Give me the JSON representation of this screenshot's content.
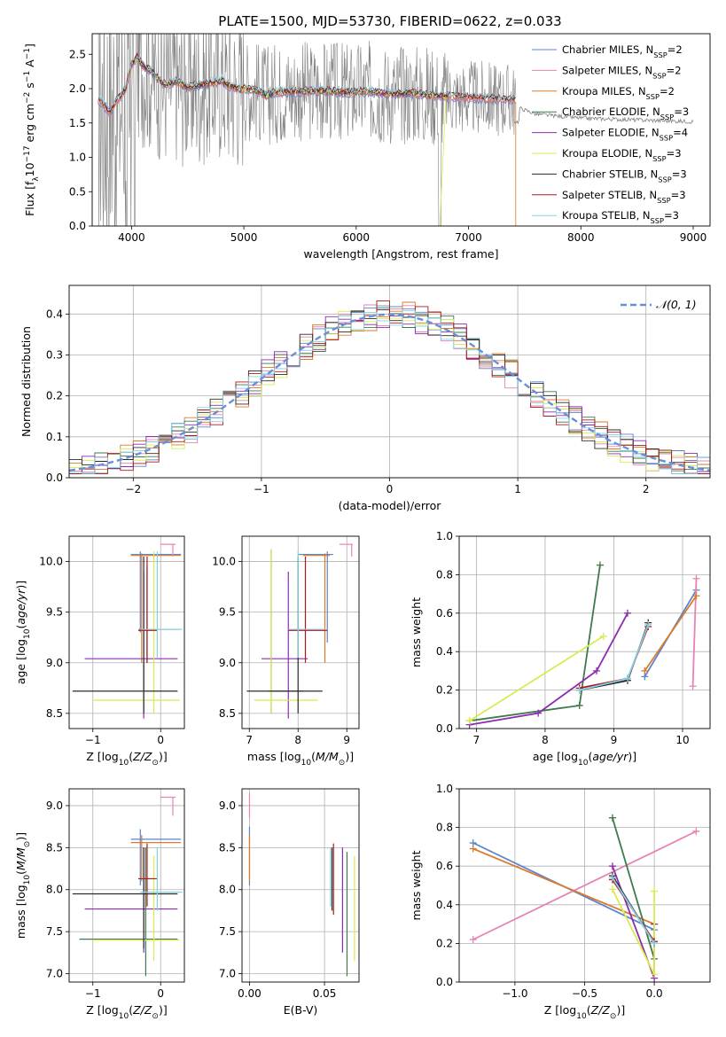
{
  "figure_title": "PLATE=1500, MJD=53730, FIBERID=0622, z=0.033",
  "colors": {
    "Chabrier MILES": "#5b84d0",
    "Salpeter MILES": "#e882b5",
    "Kroupa MILES": "#d97a2d",
    "Chabrier ELODIE": "#3f7a4a",
    "Salpeter ELODIE": "#8e2bb0",
    "Kroupa ELODIE": "#d8ec50",
    "Chabrier STELIB": "#2b2b2b",
    "Salpeter STELIB": "#b01818",
    "Kroupa STELIB": "#82d2e6",
    "data": "#808080",
    "normal": "#6a8fd6",
    "grid": "#b0b0b0"
  },
  "chart_data": [
    {
      "id": "spectrum",
      "type": "line",
      "title": "PLATE=1500, MJD=53730, FIBERID=0622, z=0.033",
      "xlabel": "wavelength [Angstrom, rest frame]",
      "ylabel": "Flux [f_λ 10^-17 erg cm^-2 s^-1 A^-1]",
      "xlim": [
        3650,
        9150
      ],
      "ylim": [
        0,
        2.8
      ],
      "xticks": [
        4000,
        5000,
        6000,
        7000,
        8000,
        9000
      ],
      "yticks": [
        0.0,
        0.5,
        1.0,
        1.5,
        2.0,
        2.5
      ],
      "ytick_labels": [
        "0.0",
        "0.5",
        "1.0",
        "1.5",
        "2.0",
        "2.5"
      ],
      "grid": false,
      "legend_position": "right",
      "legend": [
        {
          "model": "Chabrier MILES",
          "n_ssp": "2"
        },
        {
          "model": "Salpeter MILES",
          "n_ssp": "2"
        },
        {
          "model": "Kroupa MILES",
          "n_ssp": "2"
        },
        {
          "model": "Chabrier ELODIE",
          "n_ssp": "3"
        },
        {
          "model": "Salpeter ELODIE",
          "n_ssp": "4"
        },
        {
          "model": "Kroupa ELODIE",
          "n_ssp": "3"
        },
        {
          "model": "Chabrier STELIB",
          "n_ssp": "3"
        },
        {
          "model": "Salpeter STELIB",
          "n_ssp": "3"
        },
        {
          "model": "Kroupa STELIB",
          "n_ssp": "3"
        }
      ],
      "model_continuum": [
        [
          3700,
          1.85
        ],
        [
          3760,
          1.75
        ],
        [
          3800,
          1.65
        ],
        [
          3850,
          1.78
        ],
        [
          3900,
          1.88
        ],
        [
          3950,
          2.0
        ],
        [
          4000,
          2.35
        ],
        [
          4050,
          2.45
        ],
        [
          4100,
          2.33
        ],
        [
          4150,
          2.28
        ],
        [
          4200,
          2.2
        ],
        [
          4300,
          2.05
        ],
        [
          4400,
          2.1
        ],
        [
          4500,
          2.02
        ],
        [
          4600,
          2.05
        ],
        [
          4700,
          2.08
        ],
        [
          4800,
          2.12
        ],
        [
          4860,
          2.05
        ],
        [
          4950,
          2.0
        ],
        [
          5100,
          1.98
        ],
        [
          5200,
          1.9
        ],
        [
          5300,
          1.95
        ],
        [
          5500,
          1.96
        ],
        [
          5700,
          1.97
        ],
        [
          5900,
          1.94
        ],
        [
          6100,
          1.96
        ],
        [
          6300,
          1.92
        ],
        [
          6500,
          1.93
        ],
        [
          6700,
          1.9
        ],
        [
          6900,
          1.88
        ],
        [
          7100,
          1.86
        ],
        [
          7300,
          1.85
        ],
        [
          7400,
          1.84
        ]
      ],
      "ir_continuum": [
        [
          7450,
          1.72
        ],
        [
          7600,
          1.63
        ],
        [
          7800,
          1.6
        ],
        [
          8000,
          1.57
        ],
        [
          8200,
          1.56
        ],
        [
          8400,
          1.55
        ],
        [
          8600,
          1.54
        ],
        [
          8800,
          1.53
        ],
        [
          9000,
          1.52
        ]
      ]
    },
    {
      "id": "residuals",
      "type": "histogram",
      "xlabel": "(data-model)/error",
      "ylabel": "Normed distribution",
      "xlim": [
        -2.5,
        2.5
      ],
      "ylim": [
        0,
        0.47
      ],
      "xticks": [
        -2,
        -1,
        0,
        1,
        2
      ],
      "xtick_labels": [
        "−2",
        "−1",
        "0",
        "1",
        "2"
      ],
      "yticks": [
        0.0,
        0.1,
        0.2,
        0.3,
        0.4
      ],
      "ytick_labels": [
        "0.0",
        "0.1",
        "0.2",
        "0.3",
        "0.4"
      ],
      "bin_width": 0.1,
      "grid": true,
      "legend_position": "top-right",
      "legend_label": "𝒩(0, 1)",
      "reference_curve": "normal(0,1)"
    },
    {
      "id": "age-vs-Z",
      "type": "scatter",
      "xlabel": "Z [log10(Z/Z⊙)]",
      "ylabel": "age  [log10(age/yr)]",
      "xlim": [
        -1.35,
        0.35
      ],
      "ylim": [
        8.35,
        10.25
      ],
      "xticks": [
        -1,
        0
      ],
      "xtick_labels": [
        "−1",
        "0"
      ],
      "yticks": [
        8.5,
        9.0,
        9.5,
        10.0
      ],
      "ytick_labels": [
        "8.5",
        "9.0",
        "9.5",
        "10.0"
      ],
      "grid": true
    },
    {
      "id": "age-vs-mass",
      "type": "scatter",
      "xlabel": "mass [log10(M/M⊙)]",
      "xlim": [
        6.85,
        9.25
      ],
      "ylim": [
        8.35,
        10.25
      ],
      "xticks": [
        7,
        8,
        9
      ],
      "xtick_labels": [
        "7",
        "8",
        "9"
      ],
      "yticks": [
        8.5,
        9.0,
        9.5,
        10.0
      ],
      "ytick_labels": [
        "8.5",
        "9.0",
        "9.5",
        "10.0"
      ],
      "grid": true
    },
    {
      "id": "mass-weight-vs-age",
      "type": "line",
      "xlabel": "age  [log10(age/yr)]",
      "ylabel": "mass weight",
      "xlim": [
        6.75,
        10.4
      ],
      "ylim": [
        0,
        1
      ],
      "xticks": [
        7,
        8,
        9,
        10
      ],
      "xtick_labels": [
        "7",
        "8",
        "9",
        "10"
      ],
      "yticks": [
        0.0,
        0.2,
        0.4,
        0.6,
        0.8,
        1.0
      ],
      "ytick_labels": [
        "0.0",
        "0.2",
        "0.4",
        "0.6",
        "0.8",
        "1.0"
      ],
      "grid": true,
      "series": [
        {
          "name": "Chabrier MILES",
          "x": [
            9.45,
            10.2
          ],
          "y": [
            0.27,
            0.72
          ]
        },
        {
          "name": "Salpeter MILES",
          "x": [
            10.15,
            10.2
          ],
          "y": [
            0.22,
            0.78
          ]
        },
        {
          "name": "Kroupa MILES",
          "x": [
            9.45,
            10.2
          ],
          "y": [
            0.3,
            0.69
          ]
        },
        {
          "name": "Chabrier ELODIE",
          "x": [
            6.9,
            8.5,
            8.8
          ],
          "y": [
            0.04,
            0.12,
            0.85
          ]
        },
        {
          "name": "Salpeter ELODIE",
          "x": [
            6.9,
            7.9,
            8.75,
            9.2
          ],
          "y": [
            0.02,
            0.08,
            0.3,
            0.6
          ]
        },
        {
          "name": "Kroupa ELODIE",
          "x": [
            6.9,
            8.85
          ],
          "y": [
            0.04,
            0.48
          ]
        },
        {
          "name": "Chabrier STELIB",
          "x": [
            8.5,
            9.2,
            9.5
          ],
          "y": [
            0.2,
            0.25,
            0.55
          ]
        },
        {
          "name": "Salpeter STELIB",
          "x": [
            8.5,
            9.2,
            9.5
          ],
          "y": [
            0.21,
            0.26,
            0.53
          ]
        },
        {
          "name": "Kroupa STELIB",
          "x": [
            8.5,
            9.2,
            9.5
          ],
          "y": [
            0.2,
            0.26,
            0.54
          ]
        }
      ]
    },
    {
      "id": "mass-vs-Z",
      "type": "scatter",
      "xlabel": "Z [log10(Z/Z⊙)]",
      "ylabel": "mass [log10(M/M⊙)]",
      "xlim": [
        -1.35,
        0.35
      ],
      "ylim": [
        6.9,
        9.2
      ],
      "xticks": [
        -1,
        0
      ],
      "xtick_labels": [
        "−1",
        "0"
      ],
      "yticks": [
        7.0,
        7.5,
        8.0,
        8.5,
        9.0
      ],
      "ytick_labels": [
        "7.0",
        "7.5",
        "8.0",
        "8.5",
        "9.0"
      ],
      "grid": true
    },
    {
      "id": "mass-vs-ebv",
      "type": "scatter",
      "xlabel": "E(B-V)",
      "xlim": [
        -0.005,
        0.073
      ],
      "ylim": [
        6.9,
        9.2
      ],
      "xticks": [
        0.0,
        0.05
      ],
      "xtick_labels": [
        "0.00",
        "0.05"
      ],
      "yticks": [
        7.0,
        7.5,
        8.0,
        8.5,
        9.0
      ],
      "ytick_labels": [
        "7.0",
        "7.5",
        "8.0",
        "8.5",
        "9.0"
      ],
      "grid": true
    },
    {
      "id": "mass-weight-vs-Z",
      "type": "line",
      "xlabel": "Z [log10(Z/Z⊙)]",
      "ylabel": "mass weight",
      "xlim": [
        -1.4,
        0.4
      ],
      "ylim": [
        0,
        1
      ],
      "xticks": [
        -1.0,
        -0.5,
        0.0
      ],
      "xtick_labels": [
        "−1.0",
        "−0.5",
        "0.0"
      ],
      "yticks": [
        0.0,
        0.2,
        0.4,
        0.6,
        0.8,
        1.0
      ],
      "ytick_labels": [
        "0.0",
        "0.2",
        "0.4",
        "0.6",
        "0.8",
        "1.0"
      ],
      "grid": true,
      "series": [
        {
          "name": "Chabrier MILES",
          "x": [
            -1.3,
            0.0
          ],
          "y": [
            0.72,
            0.27
          ]
        },
        {
          "name": "Salpeter MILES",
          "x": [
            -1.3,
            0.3
          ],
          "y": [
            0.22,
            0.78
          ]
        },
        {
          "name": "Kroupa MILES",
          "x": [
            -1.3,
            0.0
          ],
          "y": [
            0.69,
            0.3
          ]
        },
        {
          "name": "Chabrier ELODIE",
          "x": [
            -0.3,
            0.0
          ],
          "y": [
            0.85,
            0.12
          ]
        },
        {
          "name": "Salpeter ELODIE",
          "x": [
            -0.3,
            0.0,
            0.0
          ],
          "y": [
            0.6,
            0.02,
            0.3
          ]
        },
        {
          "name": "Kroupa ELODIE",
          "x": [
            -0.3,
            0.0,
            0.0
          ],
          "y": [
            0.48,
            0.04,
            0.47
          ]
        },
        {
          "name": "Chabrier STELIB",
          "x": [
            -0.3,
            0.0
          ],
          "y": [
            0.55,
            0.2
          ]
        },
        {
          "name": "Salpeter STELIB",
          "x": [
            -0.3,
            0.0
          ],
          "y": [
            0.53,
            0.21
          ]
        },
        {
          "name": "Kroupa STELIB",
          "x": [
            -0.3,
            0.0
          ],
          "y": [
            0.54,
            0.2
          ]
        }
      ]
    }
  ],
  "ssp_errorbars": {
    "age_vs_Z": [
      {
        "model": "Chabrier MILES",
        "x": [
          -0.44,
          0.3
        ],
        "cx": -0.3,
        "y": [
          9.3,
          10.1
        ],
        "cy": 10.07
      },
      {
        "model": "Kroupa MILES",
        "x": [
          -0.44,
          0.3
        ],
        "cx": -0.28,
        "y": [
          9.0,
          10.08
        ],
        "cy": 10.06
      },
      {
        "model": "Salpeter MILES",
        "x": [
          0.0,
          0.22
        ],
        "cx": 0.18,
        "y": [
          10.05,
          10.17
        ],
        "cy": 10.17
      },
      {
        "model": "Chabrier ELODIE",
        "x": [
          -0.32,
          0.28
        ],
        "cx": -0.2,
        "y": [
          9.0,
          9.95
        ],
        "cy": 9.33
      },
      {
        "model": "Salpeter ELODIE",
        "x": [
          -1.12,
          0.25
        ],
        "cx": -0.25,
        "y": [
          8.45,
          9.9
        ],
        "cy": 9.04
      },
      {
        "model": "Kroupa ELODIE",
        "x": [
          -1.0,
          0.28
        ],
        "cx": -0.1,
        "y": [
          8.5,
          10.1
        ],
        "cy": 8.63
      },
      {
        "model": "Chabrier STELIB",
        "x": [
          -1.3,
          0.25
        ],
        "cx": -0.25,
        "y": [
          8.5,
          10.05
        ],
        "cy": 8.72
      },
      {
        "model": "Salpeter STELIB",
        "x": [
          -0.33,
          -0.05
        ],
        "cx": -0.2,
        "y": [
          9.0,
          10.05
        ],
        "cy": 9.32
      },
      {
        "model": "Kroupa STELIB",
        "x": [
          -0.3,
          0.32
        ],
        "cx": -0.05,
        "y": [
          9.05,
          10.1
        ],
        "cy": 9.33
      }
    ],
    "age_vs_mass": [
      {
        "model": "Chabrier MILES",
        "x": [
          8.0,
          8.72
        ],
        "cx": 8.6,
        "y": [
          9.2,
          10.1
        ],
        "cy": 10.07
      },
      {
        "model": "Kroupa MILES",
        "x": [
          8.1,
          8.65
        ],
        "cx": 8.55,
        "y": [
          9.0,
          10.08
        ],
        "cy": 10.06
      },
      {
        "model": "Salpeter MILES",
        "x": [
          8.85,
          9.12
        ],
        "cx": 9.1,
        "y": [
          10.05,
          10.17
        ],
        "cy": 10.17
      },
      {
        "model": "Chabrier ELODIE",
        "x": [
          7.4,
          8.1
        ],
        "cx": 7.45,
        "y": [
          8.5,
          10.12
        ],
        "cy": 8.72
      },
      {
        "model": "Salpeter ELODIE",
        "x": [
          7.25,
          8.2
        ],
        "cx": 7.8,
        "y": [
          8.45,
          9.9
        ],
        "cy": 9.04
      },
      {
        "model": "Kroupa ELODIE",
        "x": [
          7.1,
          8.4
        ],
        "cx": 7.45,
        "y": [
          8.5,
          10.12
        ],
        "cy": 8.63
      },
      {
        "model": "Chabrier STELIB",
        "x": [
          6.95,
          8.5
        ],
        "cx": 8.0,
        "y": [
          8.5,
          10.05
        ],
        "cy": 8.72
      },
      {
        "model": "Salpeter STELIB",
        "x": [
          7.8,
          8.6
        ],
        "cx": 8.15,
        "y": [
          9.0,
          10.05
        ],
        "cy": 9.32
      },
      {
        "model": "Kroupa STELIB",
        "x": [
          7.8,
          8.55
        ],
        "cx": 8.0,
        "y": [
          9.05,
          10.1
        ],
        "cy": 9.33
      }
    ],
    "mass_vs_Z": [
      {
        "model": "Chabrier MILES",
        "x": [
          -0.44,
          0.3
        ],
        "cx": -0.3,
        "y": [
          8.05,
          8.72
        ],
        "cy": 8.6
      },
      {
        "model": "Kroupa MILES",
        "x": [
          -0.44,
          0.3
        ],
        "cx": -0.28,
        "y": [
          8.1,
          8.65
        ],
        "cy": 8.56
      },
      {
        "model": "Salpeter MILES",
        "x": [
          0.0,
          0.22
        ],
        "cx": 0.18,
        "y": [
          8.88,
          9.1
        ],
        "cy": 9.1
      },
      {
        "model": "Chabrier ELODIE",
        "x": [
          -1.2,
          0.25
        ],
        "cx": -0.22,
        "y": [
          6.97,
          8.5
        ],
        "cy": 7.41
      },
      {
        "model": "Salpeter ELODIE",
        "x": [
          -1.12,
          0.25
        ],
        "cx": -0.25,
        "y": [
          7.25,
          8.5
        ],
        "cy": 7.77
      },
      {
        "model": "Kroupa ELODIE",
        "x": [
          -1.0,
          0.28
        ],
        "cx": -0.1,
        "y": [
          7.15,
          8.4
        ],
        "cy": 7.4
      },
      {
        "model": "Chabrier STELIB",
        "x": [
          -1.3,
          0.25
        ],
        "cx": -0.25,
        "y": [
          7.3,
          8.5
        ],
        "cy": 7.95
      },
      {
        "model": "Salpeter STELIB",
        "x": [
          -0.33,
          -0.05
        ],
        "cx": -0.2,
        "y": [
          7.8,
          8.55
        ],
        "cy": 8.13
      },
      {
        "model": "Kroupa STELIB",
        "x": [
          -0.3,
          0.32
        ],
        "cx": -0.05,
        "y": [
          7.75,
          8.5
        ],
        "cy": 7.97
      }
    ],
    "mass_vs_ebv": [
      {
        "model": "Chabrier MILES",
        "cx": 0.0,
        "y": [
          8.05,
          8.75
        ]
      },
      {
        "model": "Kroupa MILES",
        "cx": 0.0,
        "y": [
          8.1,
          8.65
        ]
      },
      {
        "model": "Salpeter MILES",
        "cx": 0.0,
        "y": [
          8.85,
          9.15
        ]
      },
      {
        "model": "Chabrier ELODIE",
        "cx": 0.065,
        "y": [
          6.97,
          8.45
        ]
      },
      {
        "model": "Salpeter ELODIE",
        "cx": 0.062,
        "y": [
          7.25,
          8.5
        ]
      },
      {
        "model": "Kroupa ELODIE",
        "cx": 0.07,
        "y": [
          7.15,
          8.4
        ]
      },
      {
        "model": "Chabrier STELIB",
        "cx": 0.055,
        "y": [
          7.75,
          8.5
        ]
      },
      {
        "model": "Salpeter STELIB",
        "cx": 0.056,
        "y": [
          7.7,
          8.55
        ]
      },
      {
        "model": "Kroupa STELIB",
        "cx": 0.054,
        "y": [
          7.8,
          8.5
        ]
      }
    ]
  }
}
